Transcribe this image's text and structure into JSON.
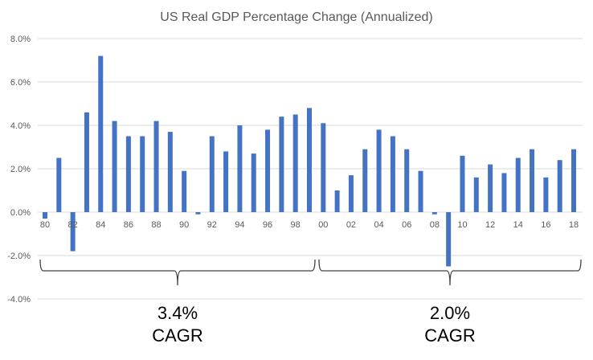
{
  "chart_data": {
    "type": "bar",
    "title": "US Real GDP Percentage Change (Annualized)",
    "xlabel": "",
    "ylabel": "",
    "ylim": [
      -4,
      8
    ],
    "y_ticks": [
      "-4.0%",
      "-2.0%",
      "0.0%",
      "2.0%",
      "4.0%",
      "6.0%",
      "8.0%"
    ],
    "y_tick_values": [
      -4,
      -2,
      0,
      2,
      4,
      6,
      8
    ],
    "grid": true,
    "bar_color": "#4472C4",
    "categories": [
      "80",
      "81",
      "82",
      "83",
      "84",
      "85",
      "86",
      "87",
      "88",
      "89",
      "90",
      "91",
      "92",
      "93",
      "94",
      "95",
      "96",
      "97",
      "98",
      "99",
      "00",
      "01",
      "02",
      "03",
      "04",
      "05",
      "06",
      "07",
      "08",
      "09",
      "10",
      "11",
      "12",
      "13",
      "14",
      "15",
      "16",
      "17",
      "18"
    ],
    "x_tick_labels": [
      "80",
      "82",
      "84",
      "86",
      "88",
      "90",
      "92",
      "94",
      "96",
      "98",
      "00",
      "02",
      "04",
      "06",
      "08",
      "10",
      "12",
      "14",
      "16",
      "18"
    ],
    "values": [
      -0.3,
      2.5,
      -1.8,
      4.6,
      7.2,
      4.2,
      3.5,
      3.5,
      4.2,
      3.7,
      1.9,
      -0.1,
      3.5,
      2.8,
      4.0,
      2.7,
      3.8,
      4.4,
      4.5,
      4.8,
      4.1,
      1.0,
      1.7,
      2.9,
      3.8,
      3.5,
      2.9,
      1.9,
      -0.1,
      -2.5,
      2.6,
      1.6,
      2.2,
      1.8,
      2.5,
      2.9,
      1.6,
      2.4,
      2.9
    ],
    "annotations": [
      {
        "span": [
          "80",
          "99"
        ],
        "value": "3.4%",
        "label": "CAGR"
      },
      {
        "span": [
          "00",
          "18"
        ],
        "value": "2.0%",
        "label": "CAGR"
      }
    ]
  }
}
